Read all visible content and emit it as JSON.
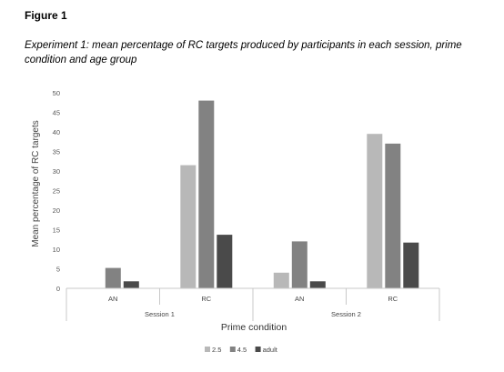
{
  "figure": {
    "label": "Figure 1",
    "caption": "Experiment 1: mean percentage of RC targets produced by participants in each session, prime condition and age group"
  },
  "chart_data": {
    "type": "bar",
    "title": "Experiment 1: mean percentage of RC targets produced by participants in each session, prime condition and age group",
    "xlabel": "Prime condition",
    "ylabel": "Mean percentage of RC targets",
    "ylim": [
      0,
      50
    ],
    "yticks": [
      0,
      5,
      10,
      15,
      20,
      25,
      30,
      35,
      40,
      45,
      50
    ],
    "grid": false,
    "legend_position": "bottom-center",
    "groups": [
      "Session 1",
      "Session 2"
    ],
    "categories": [
      "AN",
      "RC",
      "AN",
      "RC"
    ],
    "category_groups": [
      "Session 1",
      "Session 1",
      "Session 2",
      "Session 2"
    ],
    "series": [
      {
        "name": "2.5",
        "color": "#b8b8b8",
        "values": [
          0,
          31.5,
          4,
          39.5
        ]
      },
      {
        "name": "4.5",
        "color": "#828282",
        "values": [
          5.2,
          48,
          12,
          37
        ]
      },
      {
        "name": "adult",
        "color": "#4a4a4a",
        "values": [
          1.8,
          13.7,
          1.8,
          11.7
        ]
      }
    ]
  }
}
